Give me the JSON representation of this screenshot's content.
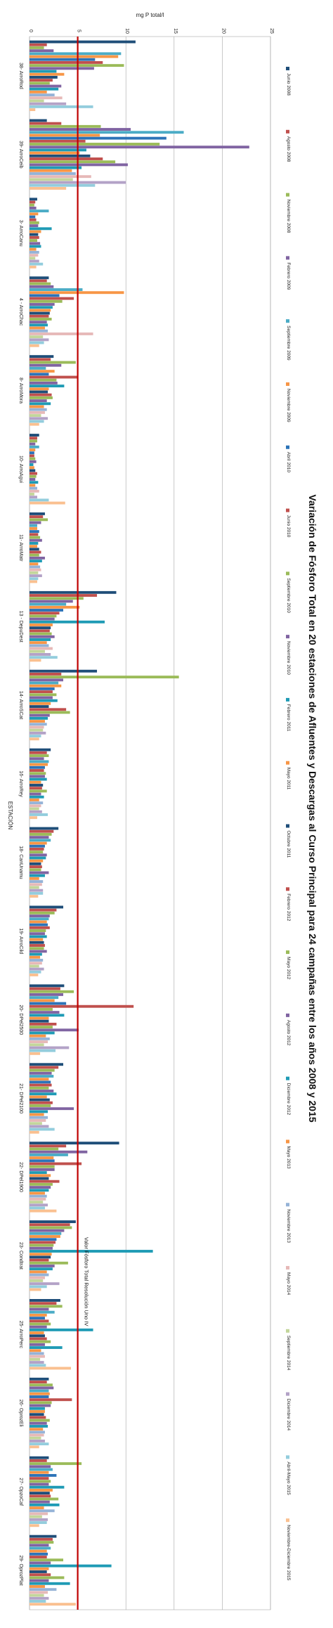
{
  "chart_data": {
    "type": "bar",
    "orientation": "horizontal",
    "title": "Variación de Fósforo Total en 20 estaciones de Afluentes y Descargas al Curso Principal para 24 campañas entre los años 2008 y 2015",
    "xlabel": "mg P total/l",
    "ylabel": "ESTACIÓN",
    "xlim": [
      0,
      25
    ],
    "x_ticks": [
      "0",
      "5",
      "10",
      "15",
      "20",
      "25"
    ],
    "grid": true,
    "legend_position": "right",
    "categories": [
      "38- ArroRod",
      "39- ArroCeib",
      "3- ArroCanu",
      "4 - ArroChac",
      "8- ArroMora",
      "10- ArroAgui",
      "11- ArroMatr",
      "13 - DepuDest",
      "14- ArroSCat",
      "16- ArroRey",
      "18- CanUnamu",
      "19- ArroCild",
      "20- DPel2500",
      "21- DPel2100",
      "22- DPel1900",
      "23- Condtrat",
      "25- ArroPerc",
      "26- OprozEli",
      "27- OpzoCaf",
      "29- OprozPlat"
    ],
    "threshold": {
      "value": 5,
      "label": "Valor Fósforo Total Resolución Uno IV",
      "color": "#c00000"
    },
    "series": [
      {
        "name": "Junio 2008",
        "color": "#1f4e79",
        "values": [
          11,
          1.8,
          0.8,
          2.0,
          2.5,
          1.0,
          1.6,
          9.0,
          7.0,
          2.2,
          3.0,
          3.5,
          3.6,
          3.5,
          9.3,
          4.8,
          3.2,
          2.0,
          2.0,
          2.8
        ]
      },
      {
        "name": "Agosto 2008",
        "color": "#c0504d",
        "values": [
          1.8,
          3.3,
          0.6,
          1.8,
          2.2,
          0.8,
          1.4,
          7.0,
          3.3,
          1.8,
          2.5,
          2.8,
          3.2,
          3.0,
          3.8,
          4.2,
          2.8,
          1.8,
          1.8,
          2.4
        ]
      },
      {
        "name": "Noviembre 2008",
        "color": "#9bbb59",
        "values": [
          1.5,
          7.4,
          0.5,
          2.2,
          4.8,
          0.8,
          1.9,
          5.6,
          15.5,
          2.0,
          2.3,
          2.6,
          4.6,
          2.6,
          3.0,
          4.4,
          3.4,
          2.4,
          5.4,
          2.5
        ]
      },
      {
        "name": "Febrero 2009",
        "color": "#8064a2",
        "values": [
          2.5,
          10.5,
          0.7,
          2.5,
          3.3,
          0.6,
          1.2,
          4.5,
          3.5,
          1.5,
          2.0,
          2.1,
          3.5,
          2.3,
          6.0,
          3.6,
          2.0,
          2.5,
          2.2,
          2.0
        ]
      },
      {
        "name": "Septiembre 2009",
        "color": "#4bacc6",
        "values": [
          9.5,
          16.0,
          2.0,
          5.5,
          1.7,
          1.0,
          0.8,
          3.8,
          3.0,
          2.0,
          2.2,
          2.0,
          3.0,
          2.5,
          4.0,
          3.3,
          2.6,
          2.0,
          2.4,
          2.2
        ]
      },
      {
        "name": "Noviembre 2009",
        "color": "#f79646",
        "values": [
          9.2,
          7.3,
          0.9,
          9.8,
          2.6,
          0.6,
          0.8,
          5.2,
          3.3,
          1.9,
          1.8,
          1.8,
          2.6,
          2.0,
          2.5,
          3.2,
          1.8,
          2.1,
          2.0,
          1.8
        ]
      },
      {
        "name": "Abril 2010",
        "color": "#2c73b8",
        "values": [
          6.8,
          14.2,
          0.6,
          3.1,
          2.0,
          0.5,
          1.0,
          3.5,
          2.6,
          1.6,
          1.6,
          1.9,
          3.8,
          2.2,
          2.6,
          2.8,
          1.6,
          2.0,
          2.8,
          1.9
        ]
      },
      {
        "name": "Junio 2010",
        "color": "#c0504d",
        "values": [
          7.6,
          5.8,
          0.7,
          4.6,
          5.0,
          0.5,
          0.9,
          3.1,
          2.4,
          1.5,
          1.5,
          2.1,
          10.8,
          2.3,
          5.4,
          2.7,
          2.0,
          4.4,
          2.0,
          1.8
        ]
      },
      {
        "name": "Septiembre 2010",
        "color": "#9bbb59",
        "values": [
          9.8,
          13.5,
          1.0,
          3.4,
          2.8,
          0.6,
          1.1,
          2.8,
          2.8,
          1.7,
          1.4,
          1.7,
          2.4,
          2.0,
          2.6,
          2.5,
          2.2,
          2.3,
          2.2,
          3.5
        ]
      },
      {
        "name": "Noviembre 2010",
        "color": "#8064a2",
        "values": [
          6.7,
          22.8,
          0.9,
          2.6,
          2.9,
          0.7,
          1.3,
          2.6,
          2.4,
          1.6,
          1.8,
          1.6,
          3.1,
          2.5,
          2.6,
          2.4,
          1.8,
          2.2,
          2.0,
          2.2
        ]
      },
      {
        "name": "Febrero 2011",
        "color": "#1f9bb5",
        "values": [
          2.8,
          5.9,
          2.3,
          2.4,
          3.6,
          0.4,
          0.9,
          7.8,
          2.9,
          1.8,
          1.7,
          1.8,
          3.6,
          2.8,
          1.8,
          12.8,
          6.6,
          1.6,
          3.6,
          8.5
        ]
      },
      {
        "name": "Mayo 2011",
        "color": "#f79646",
        "values": [
          3.6,
          5.2,
          1.2,
          2.2,
          2.0,
          0.5,
          0.8,
          2.4,
          2.2,
          1.2,
          1.4,
          1.4,
          2.0,
          1.8,
          2.2,
          2.3,
          1.5,
          1.6,
          2.4,
          2.0
        ]
      },
      {
        "name": "Octubre 2011",
        "color": "#1f4e79",
        "values": [
          2.9,
          6.3,
          0.9,
          2.1,
          1.9,
          0.6,
          1.0,
          2.2,
          2.0,
          1.4,
          1.2,
          1.5,
          2.0,
          2.1,
          2.0,
          2.2,
          1.6,
          1.5,
          2.1,
          1.8
        ]
      },
      {
        "name": "Febrero 2012",
        "color": "#c0504d",
        "values": [
          2.4,
          7.6,
          1.0,
          2.0,
          2.3,
          0.8,
          1.2,
          2.1,
          3.8,
          1.3,
          1.3,
          1.6,
          2.8,
          2.4,
          3.1,
          2.0,
          1.8,
          1.7,
          2.2,
          2.2
        ]
      },
      {
        "name": "Mayo 2012",
        "color": "#9bbb59",
        "values": [
          2.1,
          8.9,
          0.8,
          2.3,
          2.4,
          0.7,
          1.0,
          2.3,
          4.2,
          1.8,
          1.2,
          1.5,
          2.4,
          2.2,
          2.4,
          4.0,
          2.2,
          2.1,
          3.0,
          3.6
        ]
      },
      {
        "name": "Agosto 2012",
        "color": "#8064a2",
        "values": [
          3.3,
          10.2,
          1.1,
          1.8,
          1.8,
          0.6,
          1.6,
          2.6,
          2.1,
          1.2,
          2.0,
          1.8,
          5.1,
          4.6,
          2.2,
          2.6,
          1.6,
          1.8,
          2.1,
          2.0
        ]
      },
      {
        "name": "Diciembre 2012",
        "color": "#1f9bb5",
        "values": [
          3.0,
          5.4,
          1.2,
          1.9,
          2.2,
          0.9,
          1.3,
          2.2,
          1.9,
          1.5,
          1.6,
          1.3,
          2.6,
          1.9,
          2.0,
          2.4,
          3.4,
          1.9,
          3.1,
          4.2
        ]
      },
      {
        "name": "Mayo 2013",
        "color": "#f79646",
        "values": [
          1.8,
          4.4,
          0.7,
          1.6,
          1.5,
          0.6,
          0.9,
          1.8,
          1.6,
          1.0,
          1.0,
          1.1,
          1.7,
          1.5,
          1.6,
          1.8,
          1.2,
          1.4,
          1.5,
          1.6
        ]
      },
      {
        "name": "Noviembre 2013",
        "color": "#95b3d7",
        "values": [
          2.6,
          4.8,
          1.0,
          1.9,
          1.8,
          0.8,
          1.1,
          2.0,
          1.8,
          1.4,
          1.4,
          1.4,
          2.1,
          1.9,
          1.8,
          2.0,
          1.5,
          1.6,
          2.6,
          2.8
        ]
      },
      {
        "name": "Mayo 2014",
        "color": "#e6b9b8",
        "values": [
          3.4,
          6.4,
          0.9,
          6.6,
          1.6,
          1.0,
          1.2,
          2.4,
          1.5,
          1.2,
          1.3,
          1.3,
          1.9,
          1.7,
          1.7,
          1.6,
          1.6,
          1.5,
          1.9,
          1.9
        ]
      },
      {
        "name": "Septiembre 2014",
        "color": "#c3d69b",
        "values": [
          1.5,
          4.5,
          0.6,
          1.4,
          1.2,
          0.5,
          0.9,
          1.6,
          1.4,
          1.0,
          1.0,
          1.0,
          1.5,
          1.3,
          1.4,
          1.4,
          1.1,
          1.2,
          1.3,
          1.5
        ]
      },
      {
        "name": "Diciembre 2014",
        "color": "#b3a2c7",
        "values": [
          3.8,
          10.0,
          1.0,
          2.0,
          1.9,
          0.8,
          1.3,
          2.2,
          1.7,
          1.3,
          1.4,
          1.5,
          4.1,
          2.0,
          1.9,
          3.1,
          1.5,
          1.6,
          1.9,
          2.0
        ]
      },
      {
        "name": "Abril-Mayo 2015",
        "color": "#93cddd",
        "values": [
          6.6,
          6.8,
          1.4,
          1.5,
          1.5,
          2.0,
          0.9,
          2.9,
          1.2,
          1.9,
          1.4,
          1.2,
          2.7,
          2.6,
          1.6,
          1.8,
          1.7,
          2.0,
          1.8,
          1.7
        ]
      },
      {
        "name": "Noviembre-Diciembre 2015",
        "color": "#fac090",
        "values": [
          0.6,
          3.8,
          0.7,
          1.0,
          1.0,
          3.7,
          0.8,
          1.2,
          1.0,
          0.8,
          0.9,
          0.9,
          1.1,
          1.0,
          2.8,
          1.2,
          4.3,
          1.0,
          1.0,
          4.8
        ]
      }
    ]
  }
}
